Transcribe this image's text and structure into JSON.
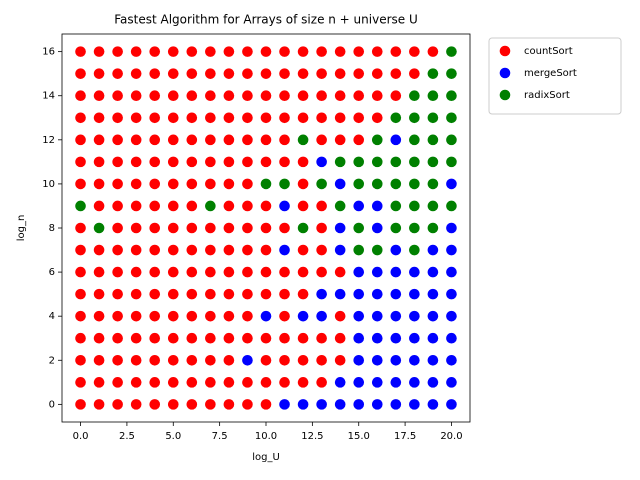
{
  "chart_data": {
    "type": "scatter",
    "title": "Fastest Algorithm for Arrays of size n + universe U",
    "x_label": "log_U",
    "y_label": "log_n",
    "xlim": [
      -1,
      21
    ],
    "ylim": [
      -0.8,
      16.8
    ],
    "xticks": [
      {
        "value": 0,
        "label": "0.0"
      },
      {
        "value": 2.5,
        "label": "2.5"
      },
      {
        "value": 5,
        "label": "5.0"
      },
      {
        "value": 7.5,
        "label": "7.5"
      },
      {
        "value": 10,
        "label": "10.0"
      },
      {
        "value": 12.5,
        "label": "12.5"
      },
      {
        "value": 15,
        "label": "15.0"
      },
      {
        "value": 17.5,
        "label": "17.5"
      },
      {
        "value": 20,
        "label": "20.0"
      }
    ],
    "yticks": [
      0,
      2,
      4,
      6,
      8,
      10,
      12,
      14,
      16
    ],
    "grid": false,
    "legend": "outside-upper-right",
    "series": [
      {
        "name": "countSort",
        "color": "#ff0000",
        "x": [
          0,
          1,
          2,
          3,
          4,
          5,
          6,
          7,
          8,
          9,
          10,
          11,
          12,
          13,
          14,
          15,
          16,
          17,
          18,
          19,
          0,
          1,
          2,
          3,
          4,
          5,
          6,
          7,
          8,
          9,
          10,
          11,
          12,
          13,
          14,
          15,
          16,
          17,
          18,
          0,
          1,
          2,
          3,
          4,
          5,
          6,
          7,
          8,
          9,
          10,
          11,
          12,
          13,
          14,
          15,
          16,
          17,
          0,
          1,
          2,
          3,
          4,
          5,
          6,
          7,
          8,
          9,
          10,
          11,
          12,
          13,
          14,
          15,
          16,
          0,
          1,
          2,
          3,
          4,
          5,
          6,
          7,
          8,
          9,
          10,
          11,
          13,
          14,
          15,
          0,
          1,
          2,
          3,
          4,
          5,
          6,
          7,
          8,
          9,
          10,
          11,
          12,
          0,
          1,
          2,
          3,
          4,
          5,
          6,
          7,
          8,
          9,
          12,
          1,
          2,
          3,
          4,
          5,
          6,
          8,
          9,
          10,
          12,
          13,
          0,
          2,
          3,
          4,
          5,
          6,
          7,
          8,
          9,
          10,
          11,
          13,
          0,
          1,
          2,
          3,
          4,
          5,
          6,
          7,
          8,
          9,
          10,
          12,
          13,
          0,
          1,
          2,
          3,
          4,
          5,
          6,
          7,
          8,
          9,
          10,
          11,
          12,
          13,
          14,
          0,
          1,
          2,
          3,
          4,
          5,
          6,
          7,
          8,
          9,
          10,
          11,
          12,
          0,
          1,
          2,
          3,
          4,
          5,
          6,
          7,
          8,
          9,
          11,
          14,
          0,
          1,
          2,
          3,
          4,
          5,
          6,
          7,
          8,
          9,
          10,
          11,
          12,
          13,
          14,
          0,
          1,
          2,
          3,
          4,
          5,
          6,
          7,
          8,
          10,
          11,
          12,
          13,
          14,
          0,
          1,
          2,
          3,
          4,
          5,
          6,
          7,
          8,
          9,
          10,
          11,
          12,
          13,
          0,
          1,
          2,
          3,
          4,
          5,
          6,
          7,
          8,
          9,
          10
        ],
        "values": [
          16,
          16,
          16,
          16,
          16,
          16,
          16,
          16,
          16,
          16,
          16,
          16,
          16,
          16,
          16,
          16,
          16,
          16,
          16,
          16,
          15,
          15,
          15,
          15,
          15,
          15,
          15,
          15,
          15,
          15,
          15,
          15,
          15,
          15,
          15,
          15,
          15,
          15,
          15,
          14,
          14,
          14,
          14,
          14,
          14,
          14,
          14,
          14,
          14,
          14,
          14,
          14,
          14,
          14,
          14,
          14,
          14,
          13,
          13,
          13,
          13,
          13,
          13,
          13,
          13,
          13,
          13,
          13,
          13,
          13,
          13,
          13,
          13,
          13,
          12,
          12,
          12,
          12,
          12,
          12,
          12,
          12,
          12,
          12,
          12,
          12,
          12,
          12,
          12,
          11,
          11,
          11,
          11,
          11,
          11,
          11,
          11,
          11,
          11,
          11,
          11,
          11,
          10,
          10,
          10,
          10,
          10,
          10,
          10,
          10,
          10,
          10,
          10,
          9,
          9,
          9,
          9,
          9,
          9,
          9,
          9,
          9,
          9,
          9,
          8,
          8,
          8,
          8,
          8,
          8,
          8,
          8,
          8,
          8,
          8,
          8,
          7,
          7,
          7,
          7,
          7,
          7,
          7,
          7,
          7,
          7,
          7,
          7,
          7,
          6,
          6,
          6,
          6,
          6,
          6,
          6,
          6,
          6,
          6,
          6,
          6,
          6,
          6,
          6,
          5,
          5,
          5,
          5,
          5,
          5,
          5,
          5,
          5,
          5,
          5,
          5,
          5,
          4,
          4,
          4,
          4,
          4,
          4,
          4,
          4,
          4,
          4,
          4,
          4,
          3,
          3,
          3,
          3,
          3,
          3,
          3,
          3,
          3,
          3,
          3,
          3,
          3,
          3,
          3,
          2,
          2,
          2,
          2,
          2,
          2,
          2,
          2,
          2,
          2,
          2,
          2,
          2,
          2,
          1,
          1,
          1,
          1,
          1,
          1,
          1,
          1,
          1,
          1,
          1,
          1,
          1,
          1,
          0,
          0,
          0,
          0,
          0,
          0,
          0,
          0,
          0,
          0,
          0
        ]
      },
      {
        "name": "mergeSort",
        "color": "#0000ff",
        "x": [
          17,
          13,
          14,
          20,
          11,
          15,
          16,
          14,
          16,
          20,
          11,
          14,
          17,
          19,
          20,
          15,
          16,
          17,
          18,
          19,
          20,
          13,
          14,
          15,
          16,
          17,
          18,
          19,
          20,
          10,
          12,
          13,
          15,
          16,
          17,
          18,
          19,
          20,
          15,
          16,
          17,
          18,
          19,
          20,
          9,
          15,
          16,
          17,
          18,
          19,
          20,
          14,
          15,
          16,
          17,
          18,
          19,
          20,
          11,
          12,
          13,
          14,
          15,
          16,
          17,
          18,
          19,
          20
        ],
        "values": [
          12,
          11,
          10,
          10,
          9,
          9,
          9,
          8,
          8,
          8,
          7,
          7,
          7,
          7,
          7,
          6,
          6,
          6,
          6,
          6,
          6,
          5,
          5,
          5,
          5,
          5,
          5,
          5,
          5,
          4,
          4,
          4,
          4,
          4,
          4,
          4,
          4,
          4,
          3,
          3,
          3,
          3,
          3,
          3,
          2,
          2,
          2,
          2,
          2,
          2,
          2,
          1,
          1,
          1,
          1,
          1,
          1,
          1,
          0,
          0,
          0,
          0,
          0,
          0,
          0,
          0,
          0,
          0
        ]
      },
      {
        "name": "radixSort",
        "color": "#008000",
        "x": [
          20,
          19,
          20,
          18,
          19,
          20,
          17,
          18,
          19,
          20,
          12,
          16,
          18,
          19,
          20,
          14,
          15,
          16,
          17,
          18,
          19,
          20,
          10,
          11,
          13,
          15,
          16,
          17,
          18,
          19,
          0,
          7,
          14,
          17,
          18,
          19,
          20,
          1,
          12,
          15,
          17,
          18,
          19,
          15,
          16,
          18
        ],
        "values": [
          16,
          15,
          15,
          14,
          14,
          14,
          13,
          13,
          13,
          13,
          12,
          12,
          12,
          12,
          12,
          11,
          11,
          11,
          11,
          11,
          11,
          11,
          10,
          10,
          10,
          10,
          10,
          10,
          10,
          10,
          9,
          9,
          9,
          9,
          9,
          9,
          9,
          8,
          8,
          8,
          8,
          8,
          8,
          7,
          7,
          7
        ]
      }
    ]
  }
}
